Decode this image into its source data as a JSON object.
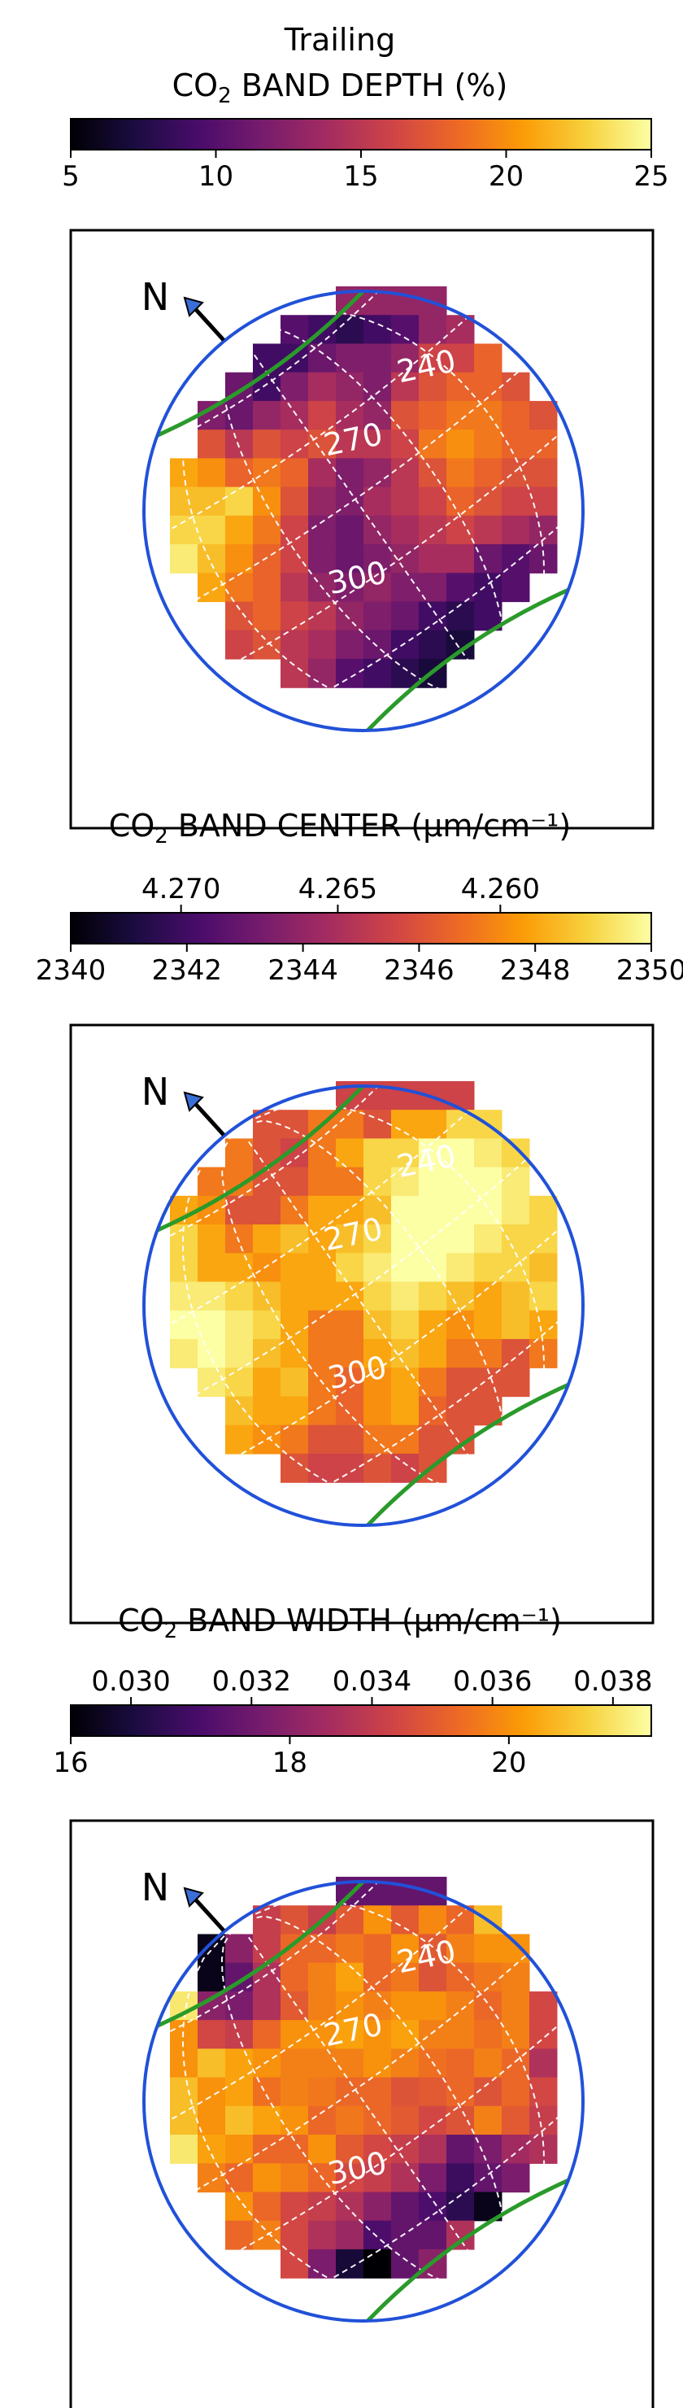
{
  "figure": {
    "header_line1": "Trailing",
    "colormap": "inferno",
    "colormap_stops": [
      "#000004",
      "#1b0c41",
      "#4a0c6b",
      "#781c6d",
      "#a52c60",
      "#cf4446",
      "#ed6925",
      "#fb9b06",
      "#f7d13d",
      "#fcffa4"
    ],
    "overlay_colors": {
      "limb": "#2151d8",
      "equator_lines": "#2a9a2a",
      "grid": "#ffffff",
      "pole_arrow": "#000000"
    },
    "panels": [
      {
        "title_prefix": "CO",
        "title_sub": "2",
        "title_suffix": " BAND DEPTH (%)",
        "colorbar": {
          "min": 5,
          "max": 25,
          "bottom_ticks": [
            "5",
            "10",
            "15",
            "20",
            "25"
          ],
          "bottom_tick_values": [
            5,
            10,
            15,
            20,
            25
          ],
          "top_ticks": [],
          "top_tick_values": []
        },
        "north_label": "N",
        "longitude_labels": [
          "240",
          "270",
          "300"
        ]
      },
      {
        "title_prefix": "CO",
        "title_sub": "2",
        "title_suffix": " BAND CENTER (μm/cm⁻¹)",
        "colorbar": {
          "min": 2340,
          "max": 2350,
          "bottom_ticks": [
            "2340",
            "2342",
            "2344",
            "2346",
            "2348",
            "2350"
          ],
          "bottom_tick_values": [
            2340,
            2342,
            2344,
            2346,
            2348,
            2350
          ],
          "top_ticks": [
            "4.270",
            "4.265",
            "4.260"
          ],
          "top_tick_values": [
            2341.9,
            2344.6,
            2347.4
          ]
        },
        "north_label": "N",
        "longitude_labels": [
          "240",
          "270",
          "300"
        ]
      },
      {
        "title_prefix": "CO",
        "title_sub": "2",
        "title_suffix": " BAND WIDTH (μm/cm⁻¹)",
        "colorbar": {
          "min": 16,
          "max": 21.3,
          "bottom_ticks": [
            "16",
            "18",
            "20"
          ],
          "bottom_tick_values": [
            16,
            18,
            20
          ],
          "top_ticks": [
            "0.030",
            "0.032",
            "0.034",
            "0.036",
            "0.038"
          ],
          "top_tick_values": [
            16.55,
            17.65,
            18.75,
            19.85,
            20.95
          ]
        },
        "north_label": "N",
        "longitude_labels": [
          "240",
          "270",
          "300"
        ]
      }
    ]
  },
  "chart_data": [
    {
      "type": "heatmap",
      "title": "Trailing CO2 BAND DEPTH (%)",
      "unit": "%",
      "vmin": 5,
      "vmax": 25,
      "grid_size": [
        16,
        16
      ],
      "values": [
        [
          null,
          null,
          null,
          null,
          null,
          null,
          null,
          13,
          13,
          13,
          13,
          null,
          null,
          null,
          null,
          null
        ],
        [
          null,
          null,
          null,
          null,
          null,
          10,
          9,
          8,
          9,
          10,
          13,
          14,
          null,
          null,
          null,
          null
        ],
        [
          null,
          null,
          null,
          null,
          9,
          9,
          11,
          12,
          12,
          13,
          16,
          16,
          18,
          null,
          null,
          null
        ],
        [
          null,
          null,
          null,
          11,
          9,
          12,
          14,
          13,
          12,
          15,
          17,
          18,
          18,
          17,
          null,
          null
        ],
        [
          null,
          null,
          12,
          11,
          13,
          14,
          16,
          14,
          13,
          17,
          18,
          19,
          19,
          18,
          17,
          null
        ],
        [
          null,
          null,
          17,
          15,
          17,
          16,
          17,
          15,
          15,
          16,
          19,
          20,
          19,
          18,
          18,
          null
        ],
        [
          null,
          21,
          20,
          18,
          19,
          18,
          14,
          12,
          13,
          15,
          17,
          19,
          18,
          17,
          17,
          null
        ],
        [
          null,
          22,
          22,
          23,
          20,
          17,
          13,
          12,
          14,
          15,
          16,
          18,
          17,
          16,
          16,
          null
        ],
        [
          null,
          23,
          23,
          21,
          19,
          16,
          12,
          11,
          13,
          14,
          15,
          16,
          15,
          14,
          13,
          null
        ],
        [
          null,
          24,
          22,
          20,
          18,
          16,
          12,
          11,
          12,
          13,
          14,
          14,
          11,
          10,
          11,
          null
        ],
        [
          null,
          null,
          21,
          19,
          18,
          15,
          13,
          12,
          13,
          12,
          12,
          10,
          9,
          10,
          null,
          null
        ],
        [
          null,
          null,
          null,
          17,
          18,
          16,
          15,
          13,
          12,
          11,
          9,
          8,
          9,
          null,
          null,
          null
        ],
        [
          null,
          null,
          null,
          16,
          17,
          15,
          14,
          12,
          11,
          9,
          8,
          7,
          null,
          null,
          null,
          null
        ],
        [
          null,
          null,
          null,
          null,
          null,
          15,
          13,
          10,
          9,
          8,
          7,
          null,
          null,
          null,
          null,
          null
        ]
      ]
    },
    {
      "type": "heatmap",
      "title": "CO2 BAND CENTER (μm/cm⁻¹)",
      "unit": "cm⁻¹",
      "vmin": 2340,
      "vmax": 2350,
      "grid_size": [
        16,
        16
      ],
      "values": [
        [
          null,
          null,
          null,
          null,
          null,
          null,
          null,
          2345.5,
          2345.5,
          2345.5,
          2345.5,
          2345.5,
          null,
          null,
          null,
          null
        ],
        [
          null,
          null,
          null,
          null,
          2346,
          2346,
          2347,
          2347,
          2346,
          2348,
          2348,
          2349,
          2349,
          null,
          null,
          null
        ],
        [
          null,
          null,
          null,
          2347,
          2346,
          2345.5,
          2347,
          2348,
          2349,
          2349,
          2350,
          2350,
          2349.5,
          2349,
          null,
          null
        ],
        [
          null,
          null,
          2347,
          2347,
          2346,
          2346,
          2347,
          2347,
          2349,
          2349.5,
          2350,
          2350,
          2350,
          2349.5,
          null,
          null
        ],
        [
          null,
          2348,
          2347.5,
          2346,
          2346,
          2347,
          2348,
          2348,
          2348.5,
          2350,
          2350,
          2350,
          2350,
          2349.5,
          2349,
          null
        ],
        [
          null,
          2349,
          2348,
          2347,
          2348,
          2348.5,
          2348,
          2348.5,
          2349,
          2350,
          2350,
          2350,
          2349.5,
          2349,
          2349,
          null
        ],
        [
          null,
          2349,
          2348,
          2348,
          2347.5,
          2348,
          2348,
          2349,
          2349.5,
          2350,
          2350,
          2349.5,
          2349,
          2349,
          2348.5,
          null
        ],
        [
          null,
          2349.5,
          2349.5,
          2349,
          2348.5,
          2348,
          2348,
          2348,
          2349,
          2349.5,
          2349,
          2348.5,
          2348,
          2348.5,
          2349,
          null
        ],
        [
          null,
          2350,
          2350,
          2349.5,
          2349,
          2348,
          2347,
          2347,
          2348.5,
          2349,
          2348,
          2347.5,
          2348,
          2348.5,
          2348,
          null
        ],
        [
          null,
          2349.5,
          2350,
          2349.5,
          2348.5,
          2348,
          2347,
          2347,
          2348,
          2348.5,
          2348,
          2347,
          2347,
          2346,
          2347,
          null
        ],
        [
          null,
          null,
          2349.5,
          2349,
          2348,
          2348.5,
          2347,
          2346.5,
          2347.5,
          2348,
          2347,
          2346,
          2346,
          2346,
          null,
          null
        ],
        [
          null,
          null,
          null,
          2348.5,
          2348,
          2348,
          2347,
          2346.5,
          2347.5,
          2348,
          2346.5,
          2346,
          2346,
          null,
          null,
          null
        ],
        [
          null,
          null,
          null,
          2348,
          2347.5,
          2347,
          2346,
          2346,
          2347,
          2347,
          2346,
          2346,
          null,
          null,
          null,
          null
        ],
        [
          null,
          null,
          null,
          null,
          null,
          2346,
          2345.5,
          2345.5,
          2346,
          2345.5,
          2346,
          null,
          null,
          null,
          null,
          null
        ]
      ]
    },
    {
      "type": "heatmap",
      "title": "CO2 BAND WIDTH (μm/cm⁻¹)",
      "unit": "cm⁻¹",
      "vmin": 16,
      "vmax": 21.3,
      "grid_size": [
        16,
        16
      ],
      "values": [
        [
          null,
          null,
          null,
          null,
          null,
          null,
          null,
          17.5,
          17.5,
          17.5,
          17.5,
          null,
          null,
          null,
          null,
          null
        ],
        [
          null,
          null,
          null,
          null,
          18.8,
          19.2,
          18.8,
          19.3,
          20,
          19.3,
          19.9,
          19.5,
          20.5,
          null,
          null,
          null
        ],
        [
          null,
          null,
          16.2,
          18,
          18.8,
          19.5,
          19.5,
          19.7,
          19.5,
          20,
          19.3,
          19.8,
          20,
          20,
          null,
          null
        ],
        [
          null,
          null,
          16.2,
          17.5,
          18.5,
          19.5,
          19.8,
          20.2,
          19.5,
          19.7,
          19.2,
          19.5,
          19.7,
          19.8,
          null,
          null
        ],
        [
          null,
          21,
          18,
          17.8,
          18.5,
          19.3,
          19.8,
          20,
          19.8,
          20,
          20,
          19.8,
          19.5,
          19.8,
          19,
          null
        ],
        [
          null,
          20,
          19,
          18.8,
          19.5,
          20,
          20,
          20.2,
          20,
          20.2,
          19.8,
          19.8,
          19.6,
          19.8,
          19,
          null
        ],
        [
          null,
          20,
          20.5,
          20.2,
          20,
          19.8,
          19.8,
          19.8,
          20,
          19.8,
          19.6,
          19.5,
          19.8,
          19.5,
          18.5,
          null
        ],
        [
          null,
          20.5,
          20,
          20.2,
          19.6,
          19.8,
          19.7,
          19.5,
          19.5,
          19.2,
          19.3,
          19.5,
          19.2,
          19.5,
          19,
          null
        ],
        [
          null,
          20.5,
          20,
          20.5,
          20.2,
          20,
          19.5,
          19.7,
          19.5,
          19.3,
          19,
          19.2,
          19.8,
          19.3,
          18.8,
          null
        ],
        [
          null,
          21,
          20.2,
          20,
          19.5,
          19.5,
          20,
          19.3,
          19,
          18.8,
          18.5,
          17.5,
          17.8,
          18.3,
          18.5,
          null
        ],
        [
          null,
          null,
          19.8,
          19.5,
          20,
          19.8,
          19.5,
          19,
          18.8,
          18.5,
          17.8,
          17,
          17.5,
          17.8,
          null,
          null
        ],
        [
          null,
          null,
          null,
          20,
          19.5,
          19,
          18.8,
          18.5,
          18,
          17.5,
          17.2,
          16.8,
          16.2,
          null,
          null,
          null
        ],
        [
          null,
          null,
          null,
          19.5,
          19.8,
          19,
          18.5,
          18.2,
          17.2,
          17.5,
          17.5,
          18.5,
          null,
          null,
          null,
          null
        ],
        [
          null,
          null,
          null,
          null,
          null,
          19,
          17.8,
          16.5,
          16,
          17.5,
          18,
          null,
          null,
          null,
          null,
          null
        ]
      ]
    }
  ]
}
